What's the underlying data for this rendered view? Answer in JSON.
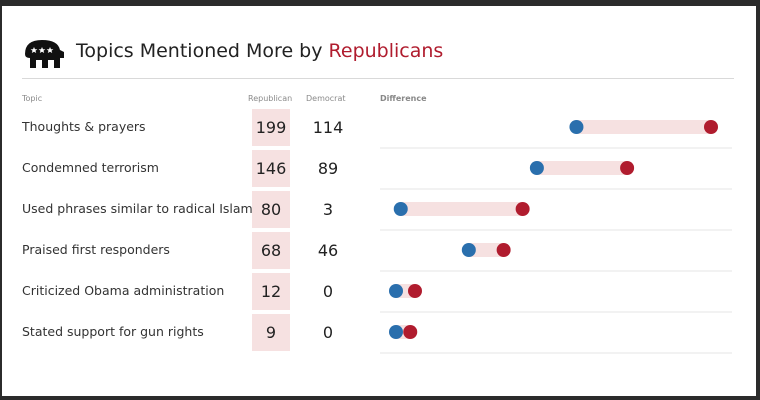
{
  "header": {
    "title_prefix": "Topics Mentioned More by ",
    "title_accent": "Republicans",
    "logo_icon": "republican-elephant-icon"
  },
  "columns": {
    "topic": "Topic",
    "republican": "Republican",
    "democrat": "Democrat",
    "difference": "Difference"
  },
  "colors": {
    "republican": "#b01c2e",
    "democrat": "#2a6fad",
    "bar": "#f6e1e1"
  },
  "chart_data": {
    "type": "dumbbell",
    "title": "Topics Mentioned More by Republicans",
    "categories": [
      "Thoughts & prayers",
      "Condemned terrorism",
      "Used phrases similar to radical Islam",
      "Praised first responders",
      "Criticized Obama administration",
      "Stated support for gun rights"
    ],
    "series": [
      {
        "name": "Republican",
        "values": [
          199,
          146,
          80,
          68,
          12,
          9
        ]
      },
      {
        "name": "Democrat",
        "values": [
          114,
          89,
          3,
          46,
          0,
          0
        ]
      }
    ],
    "xlim": [
      0,
      199
    ],
    "legend": "none",
    "grid": true
  }
}
